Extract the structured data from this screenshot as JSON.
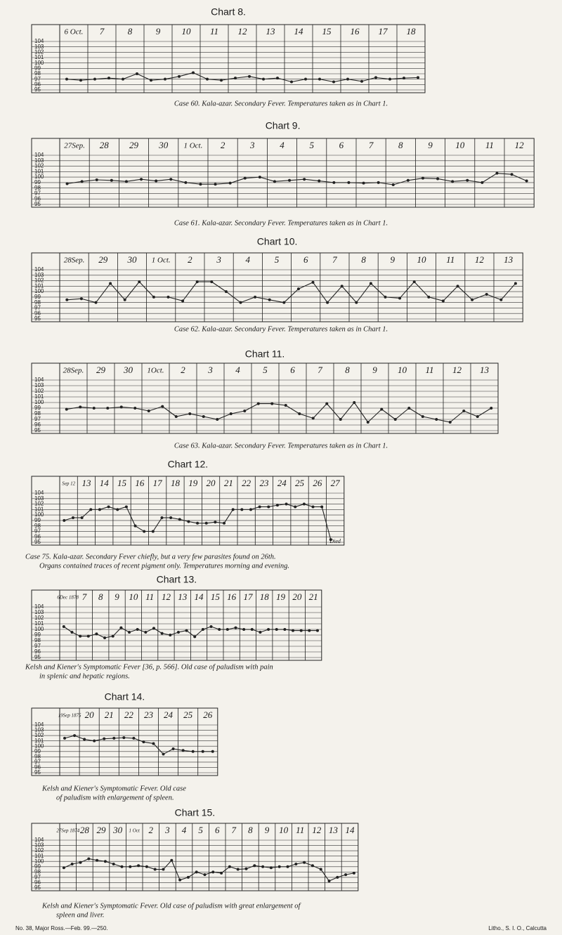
{
  "chart_data": [
    {
      "type": "line",
      "title": "Chart 8.",
      "caption": [
        "Case 60. Kala-azar. Secondary Fever. Temperatures taken as in Chart 1."
      ],
      "categories": [
        "6 Oct.",
        "7",
        "8",
        "9",
        "10",
        "11",
        "12",
        "13",
        "14",
        "15",
        "16",
        "17",
        "18"
      ],
      "series": [
        {
          "color": "#222222",
          "values": [
            97,
            97,
            97,
            96.8,
            97.5,
            97,
            97.2,
            97,
            96.5,
            97,
            97,
            97.3,
            97.2
          ]
        },
        {
          "color": "#222222",
          "values": [
            96.8,
            97.2,
            98,
            97,
            98.2,
            96.8,
            97.5,
            97.2,
            97,
            96.5,
            96.6,
            97,
            97.3
          ]
        }
      ],
      "ylim": [
        95,
        104
      ],
      "yticks": [
        95,
        96,
        97,
        98,
        99,
        100,
        101,
        102,
        103,
        104
      ],
      "grid": true
    },
    {
      "type": "line",
      "title": "Chart 9.",
      "caption": [
        "Case 61. Kala-azar. Secondary Fever. Temperatures taken as in Chart 1."
      ],
      "categories": [
        "27Sep.",
        "28",
        "29",
        "30",
        "1 Oct.",
        "2",
        "3",
        "4",
        "5",
        "6",
        "7",
        "8",
        "9",
        "10",
        "11",
        "12"
      ],
      "series": [
        {
          "color": "#222222",
          "values": [
            98.8,
            99.5,
            99.2,
            99.3,
            99,
            98.7,
            99.8,
            99.2,
            99.6,
            99,
            98.9,
            98.6,
            99.8,
            99.2,
            99,
            100.5
          ]
        },
        {
          "color": "#222222",
          "values": [
            99.2,
            99.4,
            99.6,
            99.6,
            98.7,
            98.9,
            100,
            99.4,
            99.3,
            99,
            99,
            99.4,
            99.7,
            99.4,
            100.7,
            99.3
          ]
        }
      ],
      "ylim": [
        95,
        104
      ],
      "yticks": [
        95,
        96,
        97,
        98,
        99,
        100,
        101,
        102,
        103,
        104
      ],
      "grid": true
    },
    {
      "type": "line",
      "title": "Chart 10.",
      "caption": [
        "Case 62. Kala-azar. Secondary Fever. Temperatures taken as in Chart 1."
      ],
      "categories": [
        "28Sep.",
        "29",
        "30",
        "1 Oct.",
        "2",
        "3",
        "4",
        "5",
        "6",
        "7",
        "8",
        "9",
        "10",
        "11",
        "12",
        "13"
      ],
      "series": [
        {
          "color": "#222222",
          "values": [
            98.5,
            98,
            98.5,
            99,
            98.3,
            101.8,
            98,
            98.5,
            100.5,
            98,
            98,
            99,
            101.8,
            98.3,
            98.5,
            98.5
          ]
        },
        {
          "color": "#222222",
          "values": [
            98.7,
            101.5,
            101.8,
            99,
            101.8,
            100,
            99,
            98,
            101.7,
            101,
            101.5,
            98.8,
            99,
            101,
            99.5,
            101.5
          ]
        }
      ],
      "ylim": [
        95,
        104
      ],
      "yticks": [
        95,
        96,
        97,
        98,
        99,
        100,
        101,
        102,
        103,
        104
      ],
      "grid": true
    },
    {
      "type": "line",
      "title": "Chart 11.",
      "caption": [
        "Case 63. Kala-azar. Secondary Fever. Temperatures taken as in Chart 1."
      ],
      "categories": [
        "28Sep.",
        "29",
        "30",
        "1Oct.",
        "2",
        "3",
        "4",
        "5",
        "6",
        "7",
        "8",
        "9",
        "10",
        "11",
        "12",
        "13"
      ],
      "series": [
        {
          "color": "#222222",
          "values": [
            98.8,
            99,
            99.2,
            98.5,
            97.5,
            97.5,
            98,
            99.8,
            99.5,
            97.2,
            97,
            96.5,
            97,
            97.5,
            96.5,
            97.5
          ]
        },
        {
          "color": "#222222",
          "values": [
            99.2,
            99,
            99,
            99.3,
            98,
            97,
            98.5,
            99.8,
            98,
            99.8,
            100,
            98.8,
            99,
            97,
            98.5,
            99
          ]
        }
      ],
      "ylim": [
        95,
        104
      ],
      "yticks": [
        95,
        96,
        97,
        98,
        99,
        100,
        101,
        102,
        103,
        104
      ],
      "grid": true
    },
    {
      "type": "line",
      "title": "Chart 12.",
      "annotation": "Died",
      "caption": [
        "Case 75. Kala-azar. Secondary Fever chiefly, but a very few parasites found on 26th.",
        "Organs contained traces of recent pigment only. Temperatures morning and evening."
      ],
      "categories": [
        "Sep 12",
        "13",
        "14",
        "15",
        "16",
        "17",
        "18",
        "19",
        "20",
        "21",
        "22",
        "23",
        "24",
        "25",
        "26",
        "27"
      ],
      "series": [
        {
          "color": "#222222",
          "values": [
            99,
            99.5,
            101,
            101,
            98,
            97,
            99.5,
            98.8,
            98.5,
            98.5,
            101,
            101.5,
            101.8,
            101.5,
            101.5,
            95.5
          ]
        },
        {
          "color": "#222222",
          "values": [
            99.5,
            101,
            101.5,
            101.5,
            97,
            99.5,
            99.2,
            98.5,
            98.7,
            101,
            101,
            101.5,
            102,
            102,
            101.5,
            null
          ]
        }
      ],
      "ylim": [
        95,
        104
      ],
      "yticks": [
        95,
        96,
        97,
        98,
        99,
        100,
        101,
        102,
        103,
        104
      ],
      "grid": true
    },
    {
      "type": "line",
      "title": "Chart 13.",
      "caption": [
        "Kelsh and Kiener's Symptomatic Fever [36, p. 566]. Old case of paludism with pain",
        "in splenic and hepatic regions."
      ],
      "categories": [
        "6Dec 1878",
        "7",
        "8",
        "9",
        "10",
        "11",
        "12",
        "13",
        "14",
        "15",
        "16",
        "17",
        "18",
        "19",
        "20",
        "21"
      ],
      "series": [
        {
          "color": "#222222",
          "values": [
            100.5,
            98.8,
            99.2,
            98.8,
            99.5,
            99.5,
            99.3,
            99.5,
            98.7,
            100.5,
            100,
            100,
            99.5,
            100,
            99.8,
            99.8
          ]
        },
        {
          "color": "#222222",
          "values": [
            99.5,
            98.8,
            98.5,
            100.3,
            100,
            100.2,
            99,
            99.8,
            100,
            100,
            100.3,
            100,
            100,
            100,
            99.8,
            99.8
          ]
        }
      ],
      "ylim": [
        95,
        104
      ],
      "yticks": [
        95,
        96,
        97,
        98,
        99,
        100,
        101,
        102,
        103,
        104
      ],
      "grid": true
    },
    {
      "type": "line",
      "title": "Chart 14.",
      "caption": [
        "Kelsh and Kiener's Symptomatic Fever. Old case",
        "of paludism with enlargement of spleen."
      ],
      "categories": [
        "19Sep 1875",
        "20",
        "21",
        "22",
        "23",
        "24",
        "25",
        "26"
      ],
      "series": [
        {
          "color": "#222222",
          "values": [
            101.5,
            101.3,
            101.4,
            101.6,
            100.8,
            98.5,
            99.2,
            99
          ]
        },
        {
          "color": "#222222",
          "values": [
            102,
            101,
            101.5,
            101.5,
            100.5,
            99.5,
            99,
            99
          ]
        }
      ],
      "ylim": [
        95,
        104
      ],
      "yticks": [
        95,
        96,
        97,
        98,
        99,
        100,
        101,
        102,
        103,
        104
      ],
      "grid": true
    },
    {
      "type": "line",
      "title": "Chart 15.",
      "caption": [
        "Kelsh and Kiener's Symptomatic Fever. Old case of paludism with great enlargement of",
        "spleen and liver."
      ],
      "categories": [
        "27Sep 1874",
        "28",
        "29",
        "30",
        "1 Oct",
        "2",
        "3",
        "4",
        "5",
        "6",
        "7",
        "8",
        "9",
        "10",
        "11",
        "12",
        "13",
        "14"
      ],
      "series": [
        {
          "color": "#222222",
          "values": [
            98.8,
            99.8,
            100.2,
            99.5,
            99,
            99,
            98.5,
            96.5,
            98,
            98,
            99,
            98.6,
            99,
            99,
            99.5,
            99.2,
            96.3,
            97.5
          ]
        },
        {
          "color": "#222222",
          "values": [
            99.5,
            100.5,
            100,
            99,
            99.2,
            98.5,
            100.2,
            97,
            97.5,
            97.8,
            98.5,
            99.2,
            98.8,
            99,
            99.8,
            98.5,
            97,
            97.8
          ]
        }
      ],
      "ylim": [
        95,
        104
      ],
      "yticks": [
        95,
        96,
        97,
        98,
        99,
        100,
        101,
        102,
        103,
        104
      ],
      "grid": true
    }
  ],
  "footer": {
    "left": "No. 38, Major Ross.—Feb. 99.—250.",
    "right": "Litho., S. I. O., Calcutta"
  }
}
